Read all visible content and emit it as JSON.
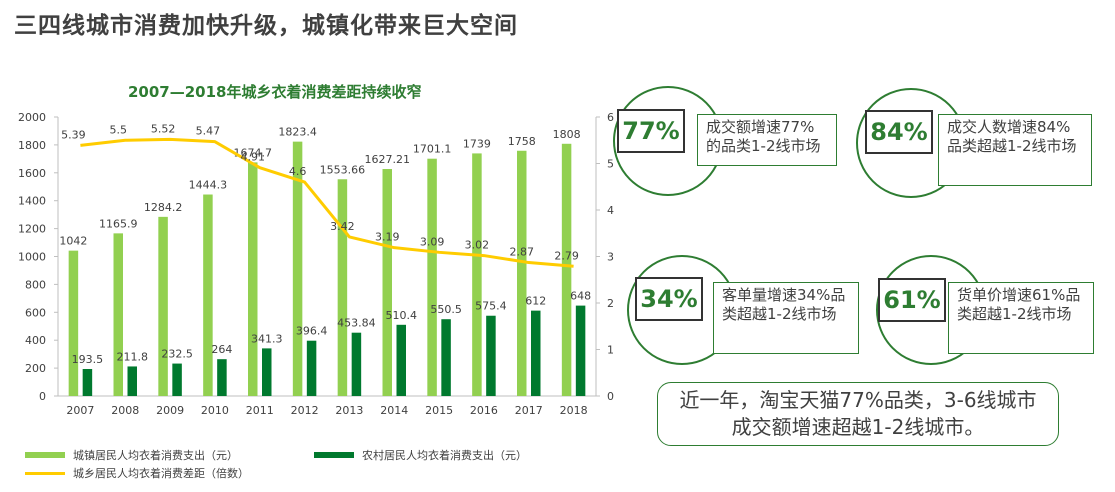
{
  "page": {
    "title": "三四线城市消费加快升级，城镇化带来巨大空间"
  },
  "chart_data": {
    "type": "bar",
    "title": "2007—2018年城乡衣着消费差距持续收窄",
    "categories": [
      "2007",
      "2008",
      "2009",
      "2010",
      "2011",
      "2012",
      "2013",
      "2014",
      "2015",
      "2016",
      "2017",
      "2018"
    ],
    "series": [
      {
        "name": "城镇居民人均衣着消费支出（元）",
        "kind": "bar",
        "axis": "left",
        "color": "#92d050",
        "values": [
          1042,
          1165.9,
          1284.2,
          1444.3,
          1674.7,
          1823.4,
          1553.66,
          1627.21,
          1701.1,
          1739,
          1758,
          1808
        ],
        "labels": [
          "1042",
          "1165.9",
          "1284.2",
          "1444.3",
          "1674.7",
          "1823.4",
          "1553.66",
          "1627.21",
          "1701.1",
          "1739",
          "1758",
          "1808"
        ]
      },
      {
        "name": "农村居民人均衣着消费支出（元）",
        "kind": "bar",
        "axis": "left",
        "color": "#00792e",
        "values": [
          193.5,
          211.8,
          232.5,
          264,
          341.3,
          396.4,
          453.84,
          510.4,
          550.5,
          575.4,
          612,
          648
        ],
        "labels": [
          "193.5",
          "211.8",
          "232.5",
          "264",
          "341.3",
          "396.4",
          "453.84",
          "510.4",
          "550.5",
          "575.4",
          "612",
          "648"
        ]
      },
      {
        "name": "城乡居民人均衣着消费差距（倍数）",
        "kind": "line",
        "axis": "right",
        "color": "#ffcc00",
        "values": [
          5.39,
          5.5,
          5.52,
          5.47,
          4.91,
          4.6,
          3.42,
          3.19,
          3.09,
          3.02,
          2.87,
          2.79
        ],
        "labels": [
          "5.39",
          "5.5",
          "5.52",
          "5.47",
          "4.91",
          "4.6",
          "3.42",
          "3.19",
          "3.09",
          "3.02",
          "2.87",
          "2.79"
        ]
      }
    ],
    "y_left": {
      "lim": [
        0,
        2000
      ],
      "ticks": [
        "0",
        "200",
        "400",
        "600",
        "800",
        "1000",
        "1200",
        "1400",
        "1600",
        "1800",
        "2000"
      ]
    },
    "y_right": {
      "lim": [
        0,
        6
      ],
      "ticks": [
        "0",
        "1",
        "2",
        "3",
        "4",
        "5",
        "6"
      ]
    },
    "grid": false,
    "legend_position": "bottom"
  },
  "stats": [
    {
      "percent": "77%",
      "text": "成交额增速77%的品类1-2线市场"
    },
    {
      "percent": "84%",
      "text": "成交人数增速84%品类超越1-2线市场"
    },
    {
      "percent": "34%",
      "text": "客单量增速34%品类超越1-2线市场"
    },
    {
      "percent": "61%",
      "text": "货单价增速61%品类超越1-2线市场"
    }
  ],
  "summary": {
    "line1": "近一年，淘宝天猫77%品类，3-6线城市",
    "line2": "成交额增速超越1-2线城市。"
  },
  "colors": {
    "accent": "#2e7d32",
    "urban_bar": "#92d050",
    "rural_bar": "#00792e",
    "ratio_line": "#ffcc00"
  }
}
